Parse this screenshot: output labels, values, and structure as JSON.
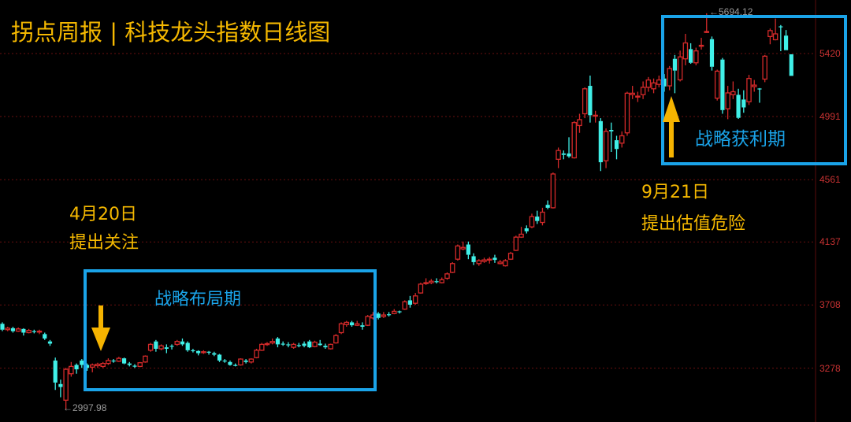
{
  "title": "拐点周报 | 科技龙头指数日线图",
  "annotations": {
    "start_date": "4月20日",
    "start_note": "提出关注",
    "phase1": "战略布局期",
    "end_date": "9月21日",
    "end_note": "提出估值危险",
    "phase2": "战略获利期",
    "max_label": "←5694.12",
    "min_label": "←2997.98"
  },
  "colors": {
    "up": "#d42a2a",
    "down": "#40f0e8",
    "box": "#1aa3e8",
    "arrow": "#f5b300",
    "title": "#f5b800",
    "grid": "#6a0f0f"
  },
  "chart_data": {
    "type": "candlestick",
    "title": "拐点周报 | 科技龙头指数日线图",
    "y_ticks": [
      "5420",
      "4991",
      "4561",
      "4137",
      "3708",
      "3278"
    ],
    "ylim": [
      2900,
      5700
    ],
    "grid": "horizontal dotted",
    "max": 5694.12,
    "min": 2997.98,
    "candle_format": [
      "open",
      "close",
      "high",
      "low"
    ],
    "candles": [
      [
        3580,
        3540,
        3590,
        3530
      ],
      [
        3540,
        3550,
        3560,
        3530
      ],
      [
        3550,
        3530,
        3560,
        3520
      ],
      [
        3530,
        3545,
        3555,
        3525
      ],
      [
        3545,
        3520,
        3550,
        3500
      ],
      [
        3520,
        3535,
        3545,
        3515
      ],
      [
        3530,
        3525,
        3540,
        3515
      ],
      [
        3525,
        3530,
        3540,
        3510
      ],
      [
        3510,
        3480,
        3520,
        3470
      ],
      [
        3460,
        3445,
        3470,
        3430
      ],
      [
        3330,
        3180,
        3350,
        3130
      ],
      [
        3170,
        3150,
        3200,
        3080
      ],
      [
        3060,
        3270,
        3280,
        2998
      ],
      [
        3240,
        3290,
        3320,
        3220
      ],
      [
        3300,
        3270,
        3310,
        3240
      ],
      [
        3330,
        3300,
        3340,
        3280
      ],
      [
        3300,
        3280,
        3310,
        3260
      ],
      [
        3285,
        3300,
        3310,
        3250
      ],
      [
        3295,
        3305,
        3315,
        3280
      ],
      [
        3290,
        3310,
        3320,
        3280
      ],
      [
        3310,
        3330,
        3345,
        3300
      ],
      [
        3330,
        3325,
        3340,
        3315
      ],
      [
        3325,
        3345,
        3355,
        3320
      ],
      [
        3345,
        3310,
        3350,
        3305
      ],
      [
        3310,
        3300,
        3320,
        3290
      ],
      [
        3295,
        3290,
        3305,
        3280
      ],
      [
        3290,
        3315,
        3320,
        3285
      ],
      [
        3320,
        3360,
        3365,
        3315
      ],
      [
        3400,
        3440,
        3450,
        3390
      ],
      [
        3460,
        3410,
        3470,
        3390
      ],
      [
        3410,
        3430,
        3440,
        3400
      ],
      [
        3420,
        3410,
        3440,
        3380
      ],
      [
        3430,
        3425,
        3440,
        3405
      ],
      [
        3440,
        3460,
        3470,
        3430
      ],
      [
        3460,
        3440,
        3480,
        3430
      ],
      [
        3450,
        3400,
        3460,
        3390
      ],
      [
        3400,
        3395,
        3410,
        3385
      ],
      [
        3395,
        3380,
        3400,
        3365
      ],
      [
        3385,
        3390,
        3400,
        3375
      ],
      [
        3390,
        3385,
        3395,
        3370
      ],
      [
        3380,
        3370,
        3390,
        3360
      ],
      [
        3370,
        3330,
        3375,
        3320
      ],
      [
        3330,
        3325,
        3340,
        3315
      ],
      [
        3320,
        3300,
        3330,
        3295
      ],
      [
        3300,
        3295,
        3310,
        3290
      ],
      [
        3300,
        3340,
        3345,
        3295
      ],
      [
        3330,
        3320,
        3340,
        3310
      ],
      [
        3320,
        3340,
        3345,
        3310
      ],
      [
        3350,
        3400,
        3410,
        3345
      ],
      [
        3400,
        3440,
        3450,
        3395
      ],
      [
        3440,
        3445,
        3455,
        3430
      ],
      [
        3450,
        3460,
        3480,
        3440
      ],
      [
        3480,
        3440,
        3490,
        3420
      ],
      [
        3445,
        3440,
        3460,
        3430
      ],
      [
        3440,
        3435,
        3455,
        3420
      ],
      [
        3420,
        3440,
        3450,
        3410
      ],
      [
        3435,
        3430,
        3450,
        3420
      ],
      [
        3445,
        3430,
        3460,
        3420
      ],
      [
        3460,
        3420,
        3470,
        3415
      ],
      [
        3425,
        3455,
        3465,
        3420
      ],
      [
        3445,
        3435,
        3470,
        3430
      ],
      [
        3430,
        3420,
        3445,
        3410
      ],
      [
        3410,
        3440,
        3445,
        3405
      ],
      [
        3450,
        3500,
        3510,
        3445
      ],
      [
        3520,
        3580,
        3590,
        3510
      ],
      [
        3575,
        3590,
        3600,
        3560
      ],
      [
        3590,
        3570,
        3600,
        3560
      ],
      [
        3570,
        3580,
        3600,
        3565
      ],
      [
        3570,
        3560,
        3590,
        3540
      ],
      [
        3570,
        3630,
        3640,
        3565
      ],
      [
        3620,
        3640,
        3660,
        3610
      ],
      [
        3650,
        3620,
        3660,
        3610
      ],
      [
        3630,
        3640,
        3660,
        3620
      ],
      [
        3645,
        3640,
        3660,
        3630
      ],
      [
        3650,
        3665,
        3680,
        3645
      ],
      [
        3665,
        3660,
        3670,
        3650
      ],
      [
        3680,
        3730,
        3740,
        3675
      ],
      [
        3740,
        3710,
        3770,
        3690
      ],
      [
        3720,
        3770,
        3790,
        3710
      ],
      [
        3790,
        3850,
        3860,
        3785
      ],
      [
        3855,
        3860,
        3890,
        3845
      ],
      [
        3860,
        3870,
        3885,
        3850
      ],
      [
        3870,
        3865,
        3890,
        3855
      ],
      [
        3860,
        3880,
        3895,
        3855
      ],
      [
        3890,
        3920,
        3930,
        3880
      ],
      [
        3930,
        3990,
        4000,
        3925
      ],
      [
        4020,
        4110,
        4120,
        4010
      ],
      [
        4090,
        4100,
        4140,
        4080
      ],
      [
        4120,
        4050,
        4140,
        4020
      ],
      [
        4040,
        4000,
        4060,
        3980
      ],
      [
        3990,
        4010,
        4020,
        3975
      ],
      [
        4005,
        4015,
        4030,
        3995
      ],
      [
        4015,
        4020,
        4035,
        3990
      ],
      [
        4030,
        4015,
        4050,
        3995
      ],
      [
        3990,
        4000,
        4015,
        3985
      ],
      [
        3975,
        4010,
        4020,
        3970
      ],
      [
        4020,
        4060,
        4070,
        4015
      ],
      [
        4080,
        4170,
        4180,
        4075
      ],
      [
        4170,
        4190,
        4240,
        4165
      ],
      [
        4230,
        4210,
        4250,
        4195
      ],
      [
        4240,
        4310,
        4330,
        4230
      ],
      [
        4310,
        4280,
        4350,
        4260
      ],
      [
        4270,
        4340,
        4370,
        4250
      ],
      [
        4390,
        4370,
        4420,
        4360
      ],
      [
        4370,
        4600,
        4610,
        4365
      ],
      [
        4700,
        4760,
        4780,
        4640
      ],
      [
        4740,
        4730,
        4760,
        4700
      ],
      [
        4740,
        4720,
        4850,
        4710
      ],
      [
        4710,
        4950,
        4960,
        4705
      ],
      [
        4930,
        4970,
        5010,
        4880
      ],
      [
        5010,
        5180,
        5190,
        4980
      ],
      [
        5200,
        5000,
        5270,
        4950
      ],
      [
        5000,
        5000,
        5030,
        4950
      ],
      [
        4960,
        4680,
        4980,
        4620
      ],
      [
        4690,
        4890,
        4910,
        4640
      ],
      [
        4900,
        4890,
        4950,
        4750
      ],
      [
        4830,
        4770,
        4860,
        4700
      ],
      [
        4810,
        4860,
        4890,
        4780
      ],
      [
        4880,
        5150,
        5160,
        4860
      ],
      [
        5140,
        5150,
        5200,
        5110
      ],
      [
        5130,
        5130,
        5160,
        5090
      ],
      [
        5140,
        5190,
        5230,
        5110
      ],
      [
        5190,
        5240,
        5260,
        5160
      ],
      [
        5180,
        5220,
        5250,
        5150
      ],
      [
        5210,
        5240,
        5270,
        5190
      ],
      [
        5250,
        5196,
        5280,
        5160
      ],
      [
        5200,
        5318,
        5335,
        5170
      ],
      [
        5384,
        5304,
        5410,
        5150
      ],
      [
        5241,
        5397,
        5440,
        5230
      ],
      [
        5384,
        5492,
        5554,
        5340
      ],
      [
        5450,
        5357,
        5490,
        5350
      ],
      [
        5357,
        5438,
        5460,
        5340
      ],
      [
        5470,
        5476,
        5527,
        5447
      ],
      [
        5565,
        5570,
        5694,
        5560
      ],
      [
        5518,
        5330,
        5536,
        5304
      ],
      [
        5116,
        5300,
        5310,
        5100
      ],
      [
        5379,
        5035,
        5390,
        5010
      ],
      [
        5044,
        5152,
        5200,
        4973
      ],
      [
        5140,
        5160,
        5230,
        5110
      ],
      [
        5139,
        4982,
        5180,
        4975
      ],
      [
        5107,
        5053,
        5170,
        5017
      ],
      [
        5092,
        5250,
        5275,
        5070
      ],
      [
        5195,
        5205,
        5240,
        5160
      ],
      [
        5182,
        5178,
        5185,
        5085
      ],
      [
        5246,
        5402,
        5410,
        5225
      ],
      [
        5536,
        5576,
        5590,
        5483
      ],
      [
        5514,
        5554,
        5658,
        5510
      ],
      [
        5605,
        5600,
        5614,
        5436
      ],
      [
        5542,
        5443,
        5580,
        5443
      ],
      [
        5415,
        5268,
        5415,
        5268
      ]
    ]
  }
}
